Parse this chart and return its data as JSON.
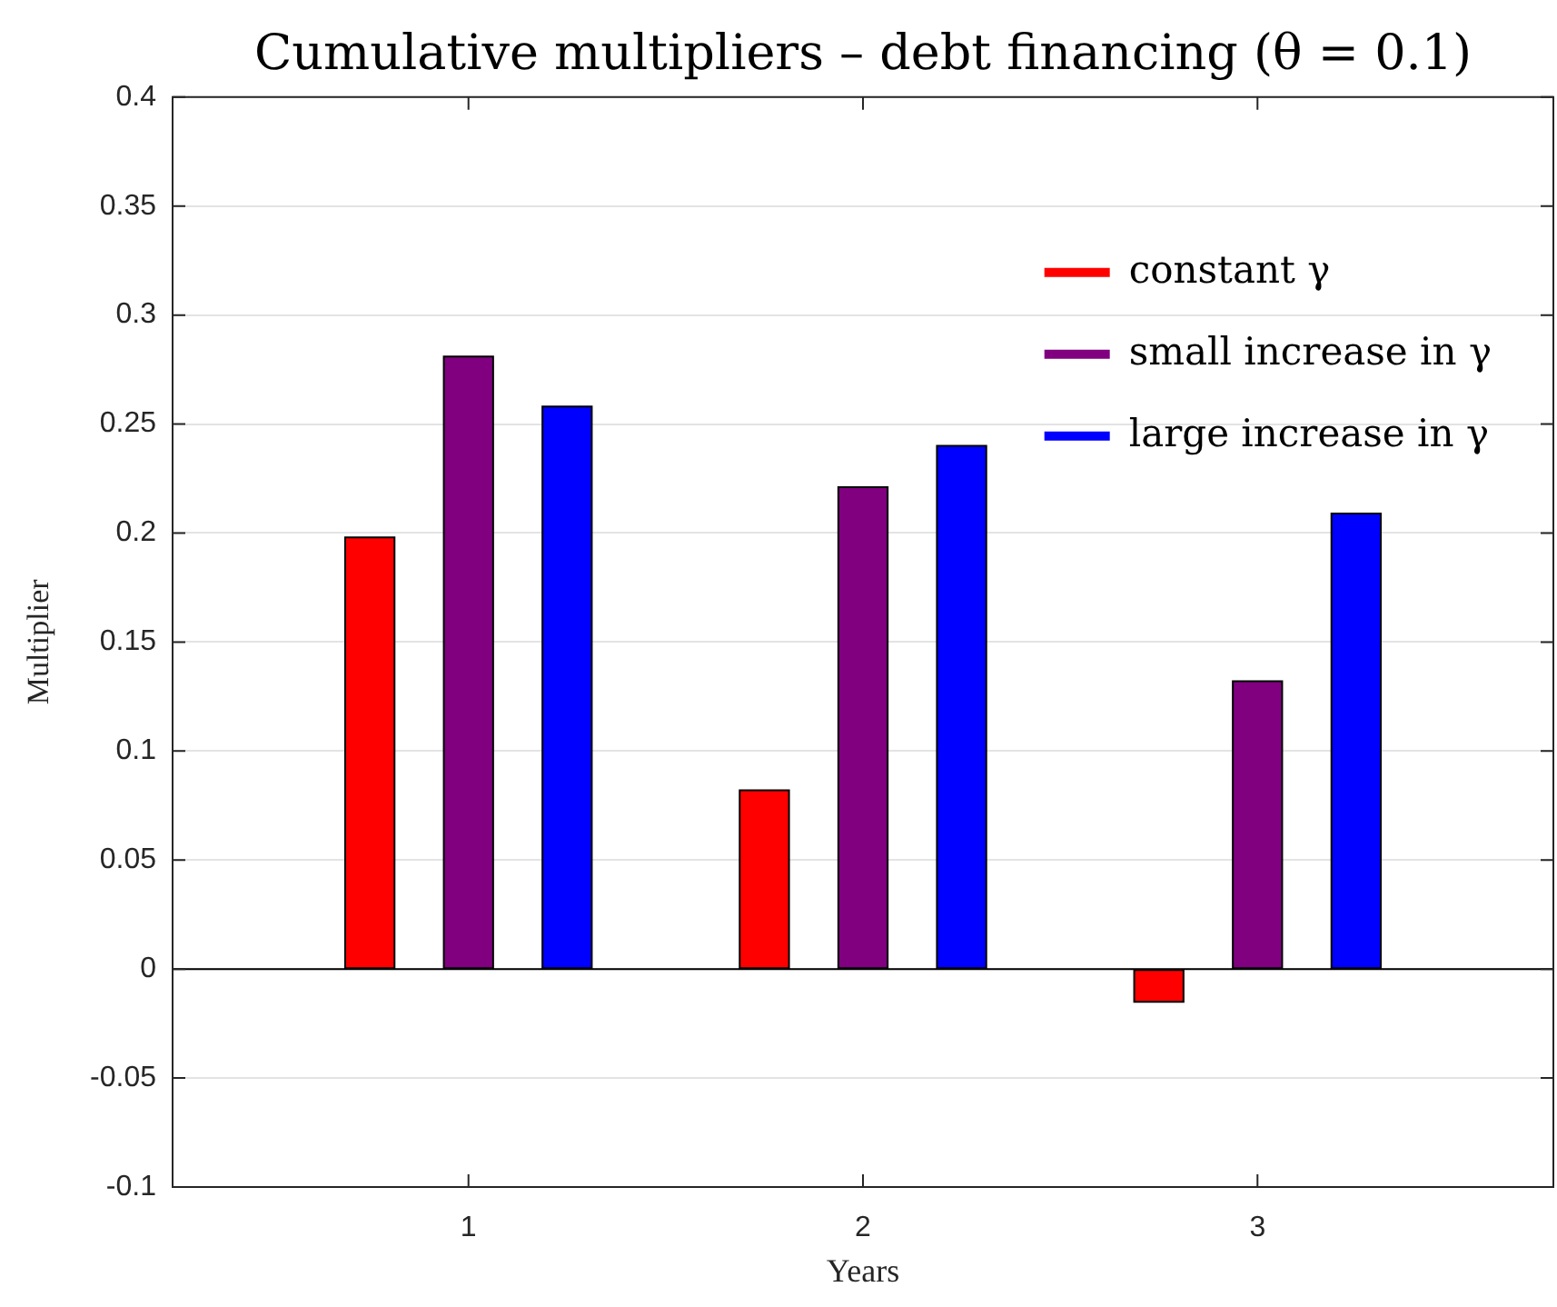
{
  "chart_data": {
    "type": "bar",
    "title": "Cumulative multipliers – debt financing (θ = 0.1)",
    "xlabel": "Years",
    "ylabel": "Multiplier",
    "x": [
      1,
      2,
      3
    ],
    "series": [
      {
        "name": "constant γ",
        "color": "#ff0000",
        "values": [
          0.198,
          0.082,
          -0.015
        ]
      },
      {
        "name": "small increase in γ",
        "color": "#800080",
        "values": [
          0.281,
          0.221,
          0.132
        ]
      },
      {
        "name": "large increase in γ",
        "color": "#0000ff",
        "values": [
          0.258,
          0.24,
          0.209
        ]
      }
    ],
    "xlim": [
      0.25,
      3.75
    ],
    "xticks": [
      1,
      2,
      3
    ],
    "ylim": [
      -0.1,
      0.4
    ],
    "yticks": [
      -0.1,
      -0.05,
      0,
      0.05,
      0.1,
      0.15,
      0.2,
      0.25,
      0.3,
      0.35,
      0.4
    ],
    "grid": "y",
    "legend": "top right"
  }
}
